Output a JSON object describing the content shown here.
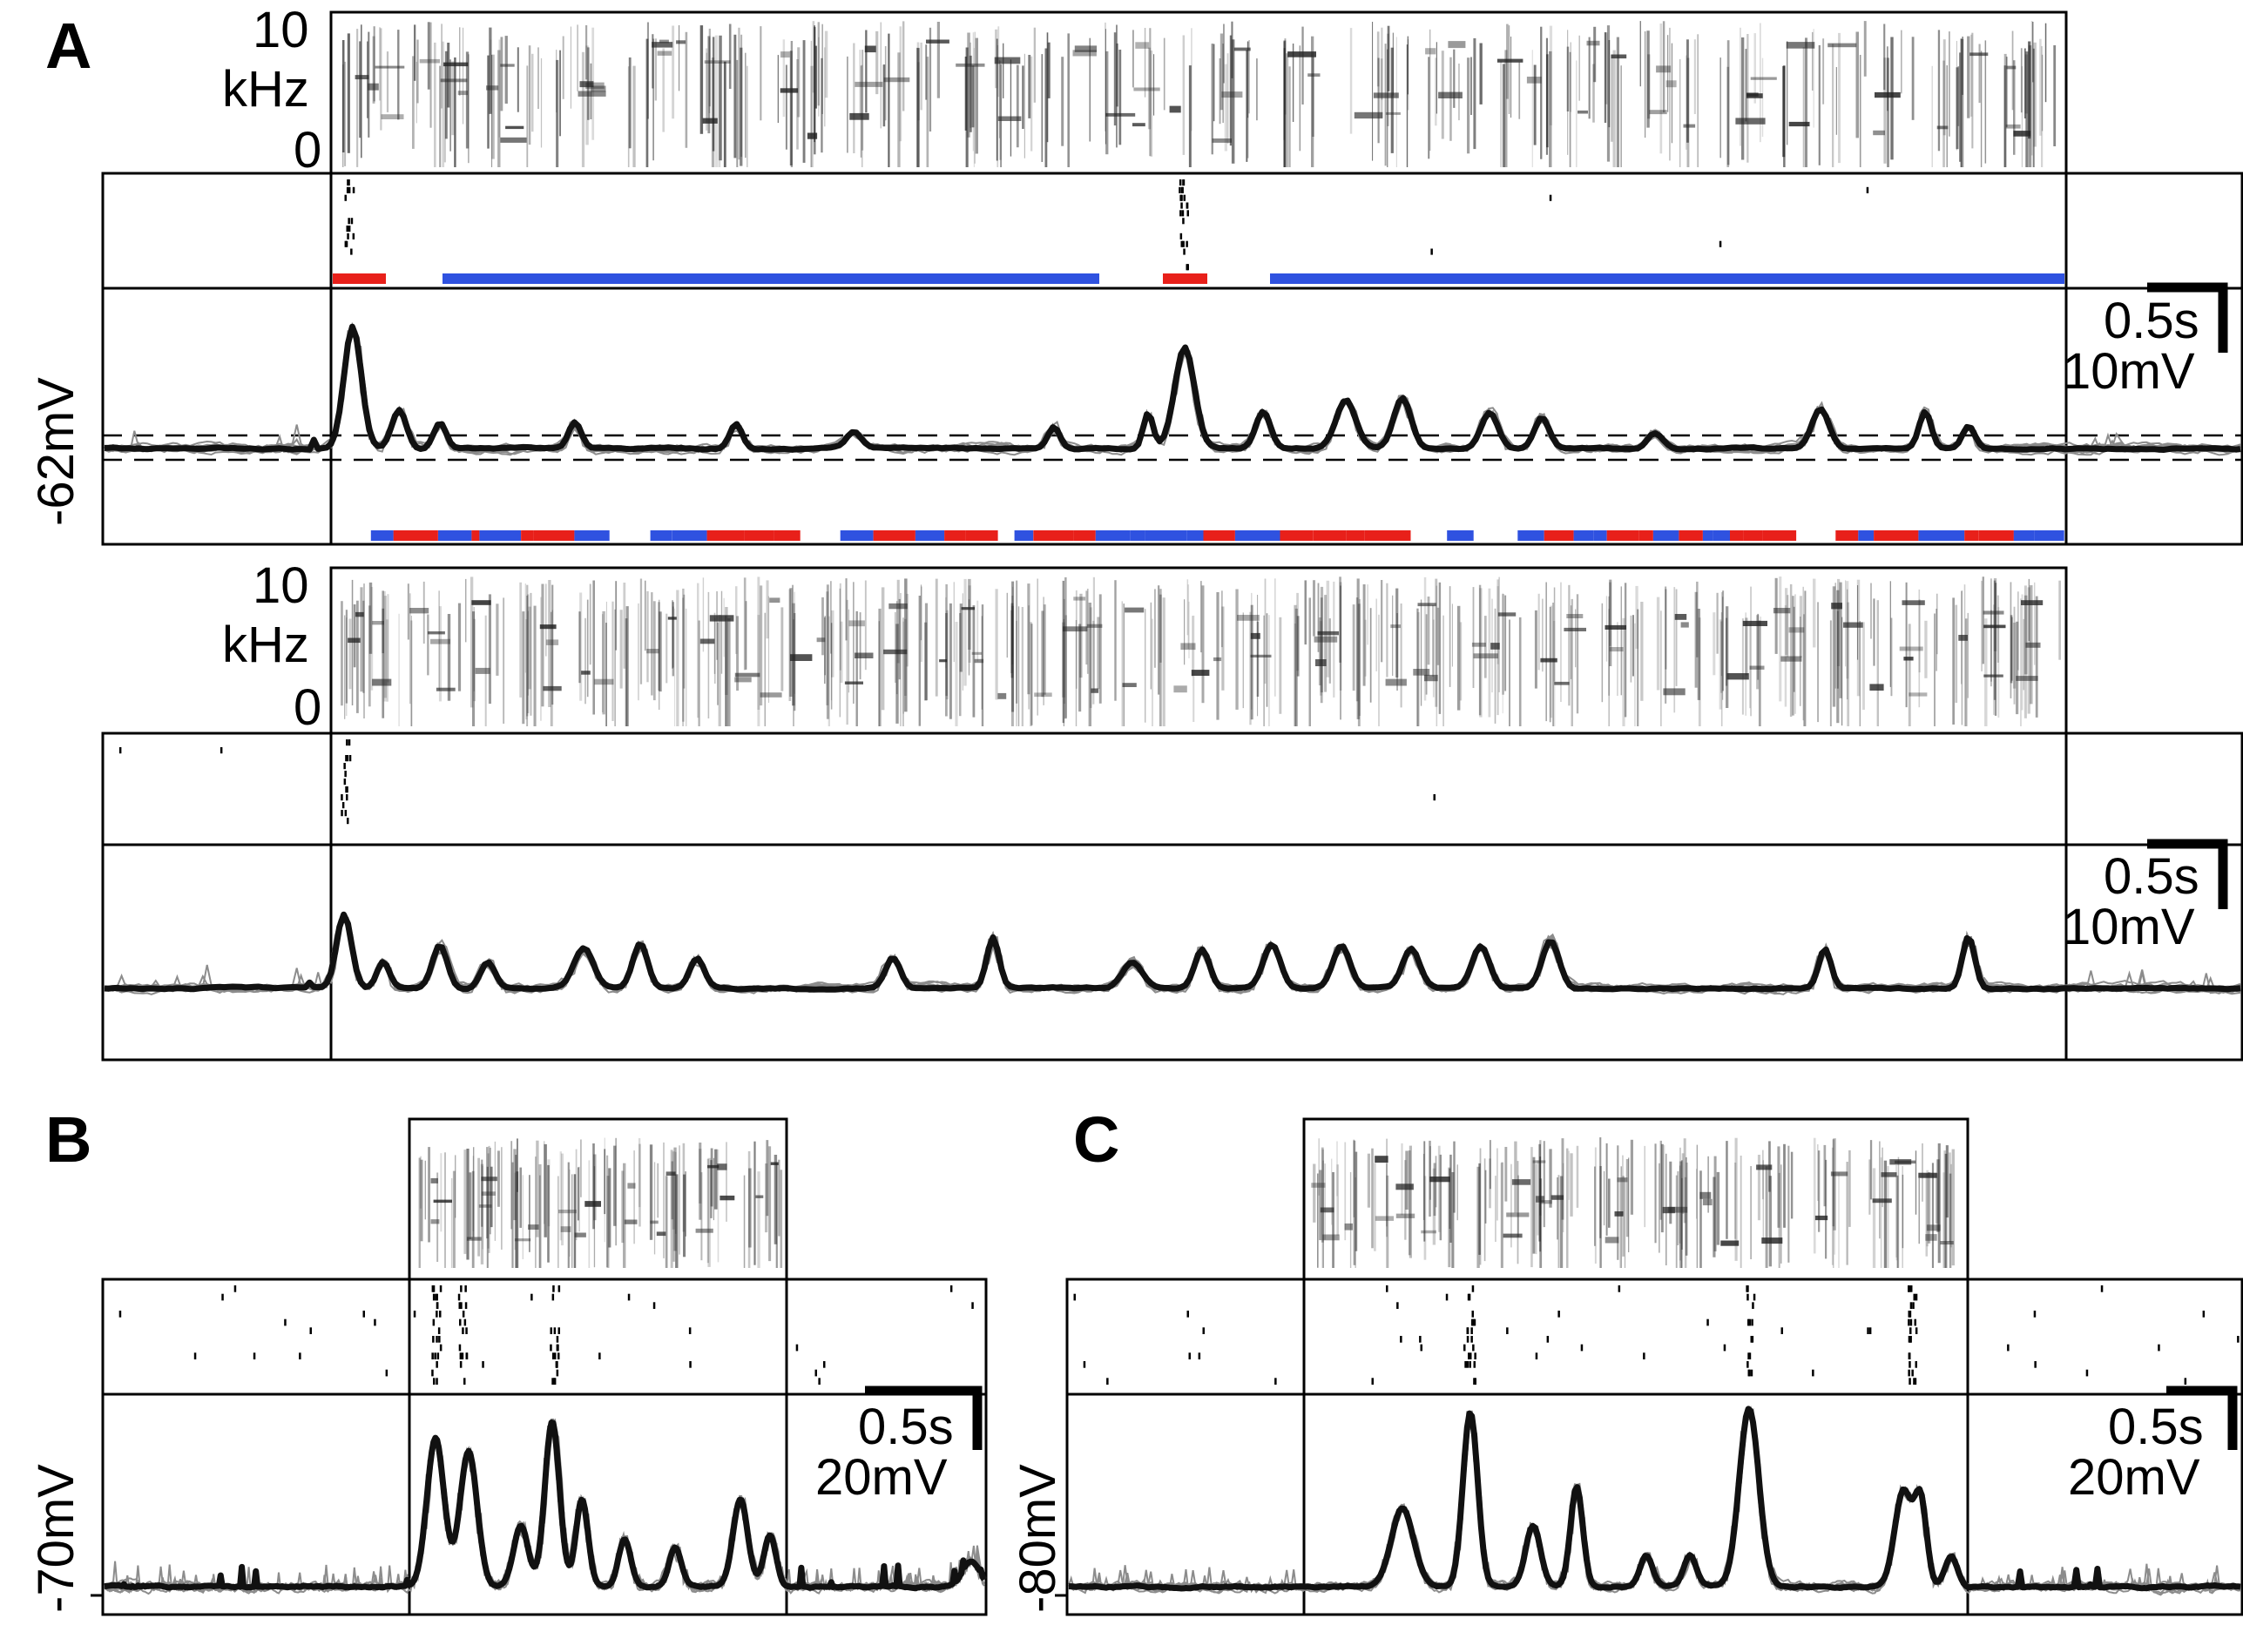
{
  "panels": {
    "A": {
      "letter": "A",
      "song1": {
        "freq_top": "10",
        "freq_unit": "kHz",
        "freq_bottom": "0",
        "voltage_label": "-62mV",
        "scale_time": "0.5s",
        "scale_voltage": "10mV"
      },
      "song2": {
        "freq_top": "10",
        "freq_unit": "kHz",
        "freq_bottom": "0",
        "scale_time": "0.5s",
        "scale_voltage": "10mV"
      }
    },
    "B": {
      "letter": "B",
      "voltage_label": "-70mV",
      "scale_time": "0.5s",
      "scale_voltage": "20mV"
    },
    "C": {
      "letter": "C",
      "voltage_label": "-80mV",
      "scale_time": "0.5s",
      "scale_voltage": "20mV"
    }
  },
  "colors": {
    "excitatory": "#e8201a",
    "inhibitory": "#2f52e0",
    "trace_mean": "#111111",
    "trace_trial": "#8c8c8c",
    "spectrogram_ink": "#222222"
  }
}
